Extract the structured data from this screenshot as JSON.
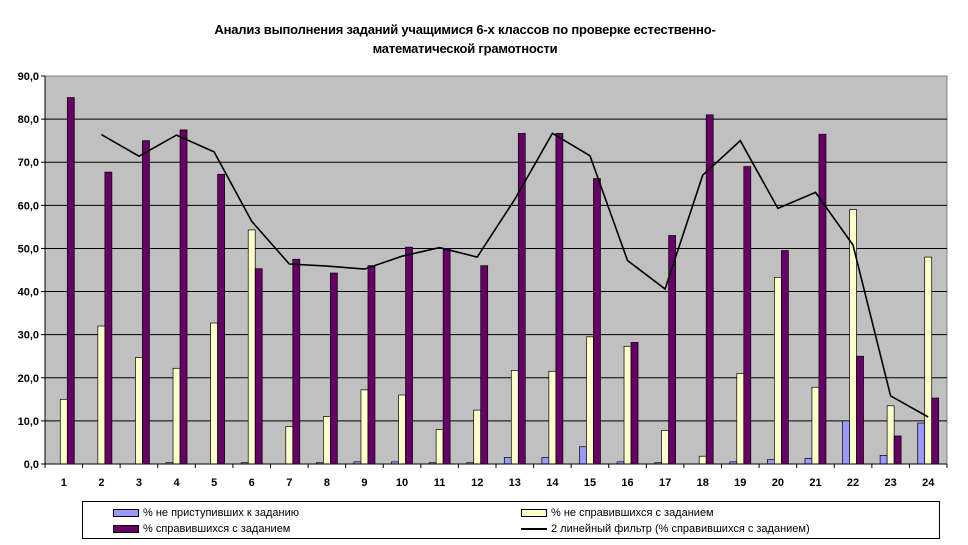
{
  "chart_data": {
    "type": "bar",
    "title": "Анализ выполнения заданий учащимися 6-х классов по проверке естественно-математической грамотности",
    "title_lines": [
      "Анализ выполнения заданий учащимися 6-х классов по проверке естественно-",
      "математической грамотности"
    ],
    "categories": [
      "1",
      "2",
      "3",
      "4",
      "5",
      "6",
      "7",
      "8",
      "9",
      "10",
      "11",
      "12",
      "13",
      "14",
      "15",
      "16",
      "17",
      "18",
      "19",
      "20",
      "21",
      "22",
      "23",
      "24"
    ],
    "y_ticks": [
      "0,0",
      "10,0",
      "20,0",
      "30,0",
      "40,0",
      "50,0",
      "60,0",
      "70,0",
      "80,0",
      "90,0"
    ],
    "ylim": [
      0,
      90
    ],
    "grid": true,
    "legend_position": "bottom",
    "series": [
      {
        "name": "% не приступивших к заданию",
        "color": "#9999ff",
        "values": [
          0.0,
          0.0,
          0.0,
          0.3,
          0.0,
          0.3,
          0.0,
          0.3,
          0.5,
          0.5,
          0.3,
          0.3,
          1.5,
          1.5,
          4.0,
          0.5,
          0.3,
          0.0,
          0.5,
          1.0,
          1.3,
          10.0,
          2.0,
          9.5
        ]
      },
      {
        "name": "% не справившихся с заданием",
        "color": "#ffffcc",
        "values": [
          15.0,
          32.0,
          24.7,
          22.2,
          32.7,
          54.3,
          8.7,
          11.0,
          17.2,
          16.0,
          8.0,
          12.5,
          21.7,
          21.5,
          29.5,
          27.3,
          7.8,
          1.8,
          21.0,
          43.3,
          17.8,
          59.0,
          13.5,
          48.0
        ]
      },
      {
        "name": "% справившихся с заданием",
        "color": "#660066",
        "values": [
          85.0,
          67.7,
          75.0,
          77.5,
          67.2,
          45.3,
          47.5,
          44.3,
          46.0,
          50.3,
          50.0,
          46.0,
          76.7,
          76.7,
          66.2,
          28.2,
          53.0,
          81.0,
          69.0,
          49.5,
          76.5,
          25.0,
          6.5,
          15.3
        ]
      }
    ],
    "trendline": {
      "name": "2 линейный фильтр (% справившихся с заданием)",
      "color": "#000000",
      "x": [
        "2",
        "3",
        "4",
        "5",
        "6",
        "7",
        "8",
        "9",
        "10",
        "11",
        "12",
        "13",
        "14",
        "15",
        "16",
        "17",
        "18",
        "19",
        "20",
        "21",
        "22",
        "23",
        "24"
      ],
      "values": [
        76.4,
        71.4,
        76.3,
        72.4,
        56.3,
        46.4,
        45.9,
        45.2,
        48.2,
        50.2,
        48.0,
        61.4,
        76.7,
        71.5,
        47.2,
        40.6,
        67.0,
        75.0,
        59.3,
        63.0,
        50.8,
        15.8,
        10.9
      ]
    }
  }
}
